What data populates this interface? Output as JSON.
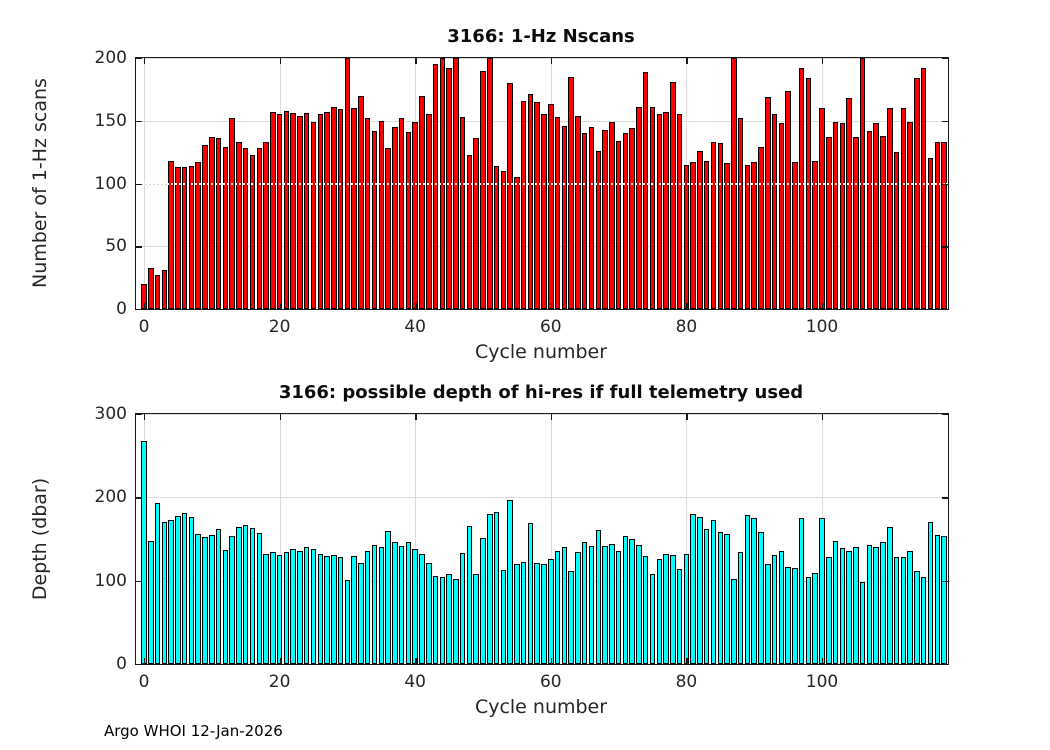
{
  "figure": {
    "footer": "Argo WHOI 12-Jan-2026",
    "background_color": "#ffffff",
    "axis_color": "#262626",
    "grid_color": "#dcdcdc"
  },
  "chart_data": [
    {
      "type": "bar",
      "title": "3166: 1-Hz Nscans",
      "xlabel": "Cycle number",
      "ylabel": "Number of 1-Hz scans",
      "ylim": [
        0,
        200
      ],
      "yticks": [
        0,
        50,
        100,
        150,
        200
      ],
      "xticks": [
        0,
        20,
        40,
        60,
        80,
        100
      ],
      "grid": true,
      "legend": "none",
      "bar_color": "#ff0000",
      "bar_edge_color": "#000000",
      "reference_line_y": 100,
      "x_start_cycle": 0,
      "x": "cycle index 0..118",
      "values": [
        20,
        33,
        27,
        31,
        118,
        113,
        113,
        114,
        117,
        131,
        137,
        136,
        129,
        152,
        133,
        128,
        123,
        128,
        133,
        157,
        155,
        158,
        156,
        154,
        156,
        149,
        155,
        157,
        161,
        159,
        200,
        160,
        170,
        152,
        142,
        150,
        128,
        145,
        152,
        141,
        149,
        170,
        155,
        195,
        200,
        192,
        200,
        153,
        123,
        136,
        190,
        200,
        114,
        110,
        180,
        105,
        166,
        171,
        165,
        155,
        163,
        153,
        146,
        185,
        154,
        140,
        145,
        126,
        143,
        149,
        134,
        140,
        144,
        161,
        189,
        161,
        155,
        157,
        181,
        155,
        115,
        117,
        126,
        118,
        133,
        132,
        116,
        200,
        152,
        115,
        117,
        129,
        169,
        155,
        148,
        174,
        117,
        192,
        184,
        118,
        160,
        137,
        149,
        148,
        168,
        137,
        200,
        142,
        148,
        138,
        160,
        125,
        160,
        149,
        184,
        192,
        120,
        133,
        133
      ]
    },
    {
      "type": "bar",
      "title": "3166: possible depth of hi-res if full telemetry used",
      "xlabel": "Cycle number",
      "ylabel": "Depth (dbar)",
      "ylim": [
        0,
        300
      ],
      "yticks": [
        0,
        100,
        200,
        300
      ],
      "xticks": [
        0,
        20,
        40,
        60,
        80,
        100
      ],
      "grid": true,
      "legend": "none",
      "bar_color": "#00ffff",
      "bar_edge_color": "#000000",
      "reference_line_y": null,
      "x_start_cycle": 0,
      "x": "cycle index 0..118",
      "values": [
        268,
        148,
        193,
        170,
        173,
        178,
        181,
        177,
        156,
        152,
        155,
        162,
        137,
        154,
        164,
        167,
        163,
        157,
        132,
        134,
        131,
        135,
        138,
        136,
        140,
        138,
        132,
        130,
        131,
        128,
        101,
        130,
        121,
        136,
        143,
        140,
        160,
        146,
        142,
        147,
        138,
        132,
        121,
        106,
        104,
        108,
        102,
        133,
        166,
        108,
        151,
        180,
        183,
        113,
        197,
        120,
        123,
        169,
        121,
        120,
        126,
        136,
        141,
        112,
        135,
        146,
        142,
        161,
        142,
        144,
        136,
        154,
        150,
        143,
        130,
        108,
        126,
        132,
        131,
        114,
        132,
        180,
        177,
        162,
        173,
        158,
        156,
        102,
        135,
        179,
        175,
        158,
        120,
        131,
        136,
        116,
        115,
        175,
        104,
        109,
        175,
        128,
        148,
        139,
        136,
        141,
        99,
        143,
        140,
        147,
        164,
        128,
        129,
        136,
        112,
        105,
        170,
        155,
        154
      ]
    }
  ]
}
